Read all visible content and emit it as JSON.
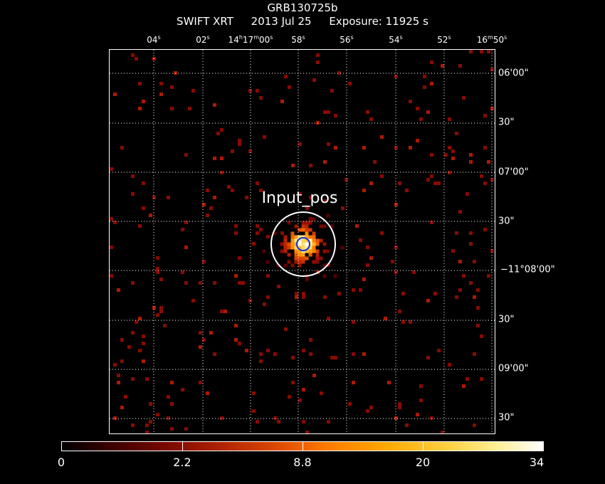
{
  "title": "GRB130725b",
  "subtitle": {
    "instrument": "SWIFT XRT",
    "date": "2013 Jul 25",
    "exposure": "Exposure: 11925 s"
  },
  "ra_labels": [
    {
      "main": "04",
      "unit": "s"
    },
    {
      "main": "02",
      "unit": "s"
    },
    {
      "main": "14",
      "h": "h",
      "m": "17",
      "mu": "m",
      "s": "00",
      "su": "s"
    },
    {
      "main": "58",
      "unit": "s"
    },
    {
      "main": "56",
      "unit": "s"
    },
    {
      "main": "54",
      "unit": "s"
    },
    {
      "main": "52",
      "unit": "s"
    },
    {
      "main": "16",
      "mu": "m",
      "s": "50",
      "su": "s"
    }
  ],
  "dec_labels": [
    "06'00\"",
    "30\"",
    "07'00\"",
    "30\"",
    "−11°08'00\"",
    "30\"",
    "09'00\"",
    "30\""
  ],
  "source_label": "Input_pos",
  "colorbar": {
    "labels": [
      "0",
      "2.2",
      "8.8",
      "20",
      "34"
    ],
    "colors": [
      "#000000",
      "#7a0a00",
      "#de4a00",
      "#ffa800",
      "#ffffff"
    ]
  }
}
